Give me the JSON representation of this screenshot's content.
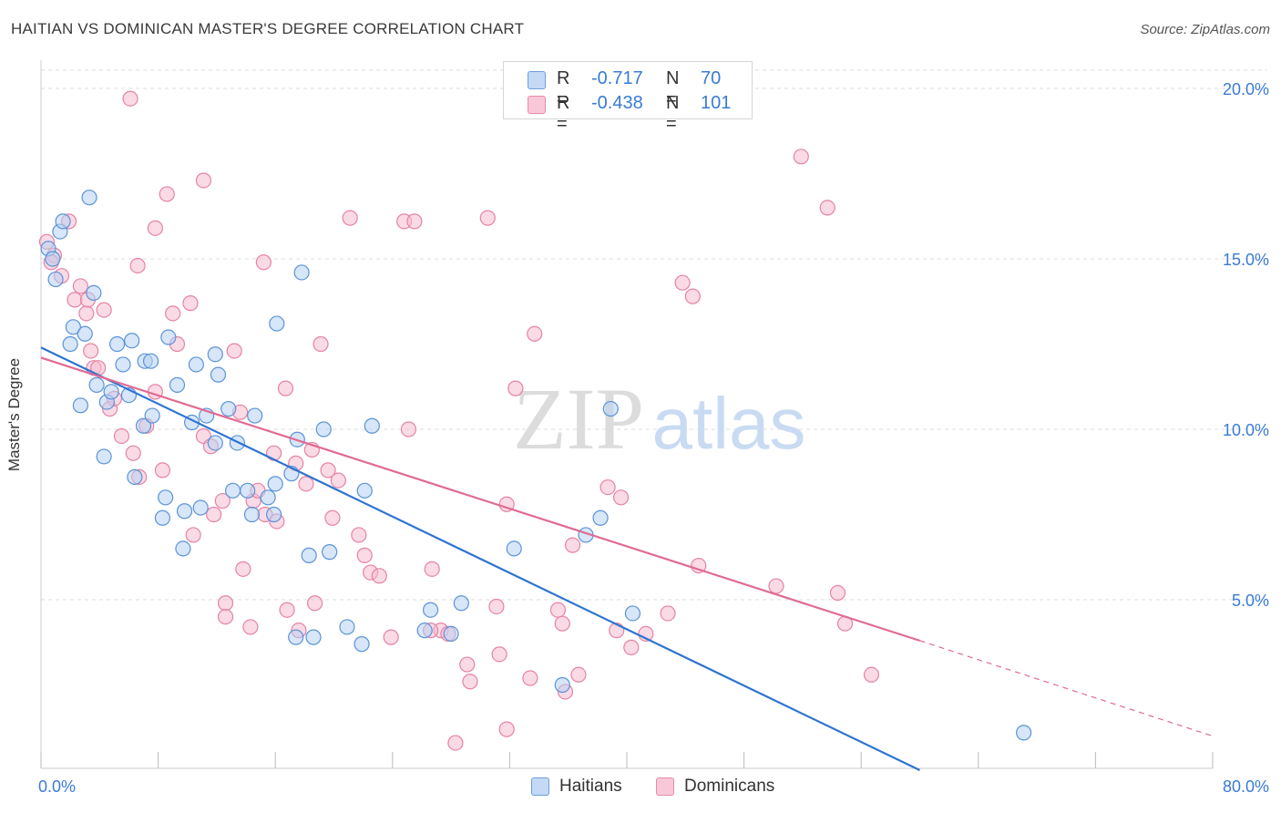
{
  "title": "HAITIAN VS DOMINICAN MASTER'S DEGREE CORRELATION CHART",
  "source": "Source: ZipAtlas.com",
  "watermark": {
    "zip": "ZIP",
    "atlas": "atlas"
  },
  "legend": {
    "rows": [
      {
        "r_label": "R =",
        "r_value": "-0.717",
        "n_label": "N =",
        "n_value": "70"
      },
      {
        "r_label": "R =",
        "r_value": "-0.438",
        "n_label": "N =",
        "n_value": "101"
      }
    ]
  },
  "colors": {
    "haitians_fill": "#b6d1f3",
    "haitians_stroke": "#5b93d8",
    "haitians_line": "#2e74d1",
    "dominicans_fill": "#f6bcd0",
    "dominicans_stroke": "#e583a5",
    "dominicans_line": "#e06b93",
    "axis_text": "#3a7bd5",
    "grid": "#dcdcdc"
  },
  "chart_data": {
    "type": "scatter",
    "title": "HAITIAN VS DOMINICAN MASTER'S DEGREE CORRELATION CHART",
    "xlabel": "",
    "ylabel": "Master's Degree",
    "xlim": [
      0,
      80
    ],
    "ylim": [
      0,
      20.5
    ],
    "x_tick_labels": [
      "0.0%",
      "80.0%"
    ],
    "y_ticks": [
      5,
      10,
      15,
      20
    ],
    "y_tick_labels": [
      "5.0%",
      "10.0%",
      "15.0%",
      "20.0%"
    ],
    "grid": "horizontal dashed",
    "legend_position": "bottom",
    "series": [
      {
        "name": "Haitians",
        "regression": {
          "x": [
            0,
            60
          ],
          "y": [
            12.4,
            0.0
          ]
        },
        "points": [
          [
            0.5,
            15.3
          ],
          [
            0.8,
            15.0
          ],
          [
            1.0,
            14.4
          ],
          [
            1.3,
            15.8
          ],
          [
            1.5,
            16.1
          ],
          [
            3.3,
            16.8
          ],
          [
            3.6,
            14.0
          ],
          [
            2.0,
            12.5
          ],
          [
            2.2,
            13.0
          ],
          [
            3.0,
            12.8
          ],
          [
            2.7,
            10.7
          ],
          [
            3.8,
            11.3
          ],
          [
            4.5,
            10.8
          ],
          [
            4.8,
            11.1
          ],
          [
            5.2,
            12.5
          ],
          [
            5.6,
            11.9
          ],
          [
            6.2,
            12.6
          ],
          [
            6.0,
            11.0
          ],
          [
            7.1,
            12.0
          ],
          [
            7.5,
            12.0
          ],
          [
            8.7,
            12.7
          ],
          [
            9.3,
            11.3
          ],
          [
            10.6,
            11.9
          ],
          [
            11.9,
            12.2
          ],
          [
            12.1,
            11.6
          ],
          [
            12.8,
            10.6
          ],
          [
            10.3,
            10.2
          ],
          [
            11.3,
            10.4
          ],
          [
            7.0,
            10.1
          ],
          [
            7.6,
            10.4
          ],
          [
            6.4,
            8.6
          ],
          [
            4.3,
            9.2
          ],
          [
            8.5,
            8.0
          ],
          [
            8.3,
            7.4
          ],
          [
            9.8,
            7.6
          ],
          [
            10.9,
            7.7
          ],
          [
            9.7,
            6.5
          ],
          [
            11.9,
            9.6
          ],
          [
            13.4,
            9.6
          ],
          [
            13.1,
            8.2
          ],
          [
            14.1,
            8.2
          ],
          [
            14.6,
            10.4
          ],
          [
            14.4,
            7.5
          ],
          [
            15.5,
            8.0
          ],
          [
            15.9,
            7.5
          ],
          [
            16.0,
            8.4
          ],
          [
            17.1,
            8.7
          ],
          [
            17.5,
            9.7
          ],
          [
            16.1,
            13.1
          ],
          [
            17.8,
            14.6
          ],
          [
            18.3,
            6.3
          ],
          [
            18.6,
            3.9
          ],
          [
            17.4,
            3.9
          ],
          [
            19.3,
            10.0
          ],
          [
            19.7,
            6.4
          ],
          [
            20.9,
            4.2
          ],
          [
            21.9,
            3.7
          ],
          [
            22.1,
            8.2
          ],
          [
            22.6,
            10.1
          ],
          [
            26.2,
            4.1
          ],
          [
            26.6,
            4.7
          ],
          [
            28.0,
            4.0
          ],
          [
            28.7,
            4.9
          ],
          [
            32.3,
            6.5
          ],
          [
            35.6,
            2.5
          ],
          [
            37.2,
            6.9
          ],
          [
            38.2,
            7.4
          ],
          [
            38.9,
            10.6
          ],
          [
            40.4,
            4.6
          ],
          [
            67.1,
            1.1
          ]
        ]
      },
      {
        "name": "Dominicans",
        "regression": {
          "x": [
            0,
            60
          ],
          "y": [
            12.1,
            3.8
          ]
        },
        "regression_extension": {
          "x": [
            60,
            80
          ],
          "y": [
            3.8,
            1.0
          ]
        },
        "points": [
          [
            6.1,
            19.7
          ],
          [
            11.1,
            17.3
          ],
          [
            8.6,
            16.9
          ],
          [
            7.8,
            15.9
          ],
          [
            1.9,
            16.1
          ],
          [
            0.4,
            15.5
          ],
          [
            0.9,
            15.1
          ],
          [
            1.4,
            14.5
          ],
          [
            0.7,
            14.9
          ],
          [
            2.3,
            13.8
          ],
          [
            2.7,
            14.2
          ],
          [
            3.1,
            13.4
          ],
          [
            3.2,
            13.8
          ],
          [
            4.3,
            13.5
          ],
          [
            6.6,
            14.8
          ],
          [
            9.0,
            13.4
          ],
          [
            10.2,
            13.7
          ],
          [
            9.3,
            12.5
          ],
          [
            3.4,
            12.3
          ],
          [
            3.6,
            11.8
          ],
          [
            3.9,
            11.8
          ],
          [
            4.7,
            10.6
          ],
          [
            5.0,
            10.9
          ],
          [
            5.5,
            9.8
          ],
          [
            6.3,
            9.3
          ],
          [
            7.2,
            10.1
          ],
          [
            7.8,
            11.1
          ],
          [
            8.3,
            8.8
          ],
          [
            6.7,
            8.6
          ],
          [
            10.4,
            6.9
          ],
          [
            11.1,
            9.8
          ],
          [
            11.6,
            9.5
          ],
          [
            11.8,
            7.5
          ],
          [
            12.4,
            7.9
          ],
          [
            13.2,
            12.3
          ],
          [
            13.6,
            10.5
          ],
          [
            14.5,
            7.9
          ],
          [
            14.8,
            8.2
          ],
          [
            13.8,
            5.9
          ],
          [
            12.6,
            4.9
          ],
          [
            12.6,
            4.5
          ],
          [
            14.3,
            4.2
          ],
          [
            15.3,
            7.5
          ],
          [
            15.9,
            9.3
          ],
          [
            16.1,
            7.3
          ],
          [
            15.2,
            14.9
          ],
          [
            16.7,
            11.2
          ],
          [
            16.8,
            4.7
          ],
          [
            17.4,
            9.0
          ],
          [
            17.6,
            4.1
          ],
          [
            18.1,
            8.4
          ],
          [
            18.5,
            9.4
          ],
          [
            18.7,
            4.9
          ],
          [
            19.1,
            12.5
          ],
          [
            19.6,
            8.8
          ],
          [
            19.9,
            7.4
          ],
          [
            20.3,
            8.5
          ],
          [
            21.1,
            16.2
          ],
          [
            21.7,
            6.9
          ],
          [
            22.1,
            6.3
          ],
          [
            22.5,
            5.8
          ],
          [
            23.1,
            5.7
          ],
          [
            23.9,
            3.9
          ],
          [
            24.8,
            16.1
          ],
          [
            25.1,
            10.0
          ],
          [
            25.5,
            16.1
          ],
          [
            26.7,
            5.9
          ],
          [
            27.3,
            4.1
          ],
          [
            27.8,
            4.0
          ],
          [
            28.3,
            0.8
          ],
          [
            29.1,
            3.1
          ],
          [
            29.3,
            2.6
          ],
          [
            30.5,
            16.2
          ],
          [
            31.1,
            4.8
          ],
          [
            31.3,
            3.4
          ],
          [
            31.8,
            1.2
          ],
          [
            32.4,
            11.2
          ],
          [
            33.4,
            2.7
          ],
          [
            33.7,
            12.8
          ],
          [
            35.3,
            4.7
          ],
          [
            35.6,
            4.3
          ],
          [
            35.8,
            2.3
          ],
          [
            36.7,
            2.8
          ],
          [
            38.7,
            8.3
          ],
          [
            39.3,
            4.1
          ],
          [
            39.6,
            8.0
          ],
          [
            40.3,
            3.6
          ],
          [
            41.3,
            4.0
          ],
          [
            42.8,
            4.6
          ],
          [
            43.8,
            14.3
          ],
          [
            44.5,
            13.9
          ],
          [
            44.9,
            6.0
          ],
          [
            50.2,
            5.4
          ],
          [
            51.9,
            18.0
          ],
          [
            53.7,
            16.5
          ],
          [
            54.4,
            5.2
          ],
          [
            54.9,
            4.3
          ],
          [
            56.7,
            2.8
          ],
          [
            31.8,
            7.8
          ],
          [
            36.3,
            6.6
          ],
          [
            26.6,
            4.1
          ]
        ]
      }
    ]
  },
  "bottom_legend": [
    {
      "label": "Haitians"
    },
    {
      "label": "Dominicans"
    }
  ]
}
